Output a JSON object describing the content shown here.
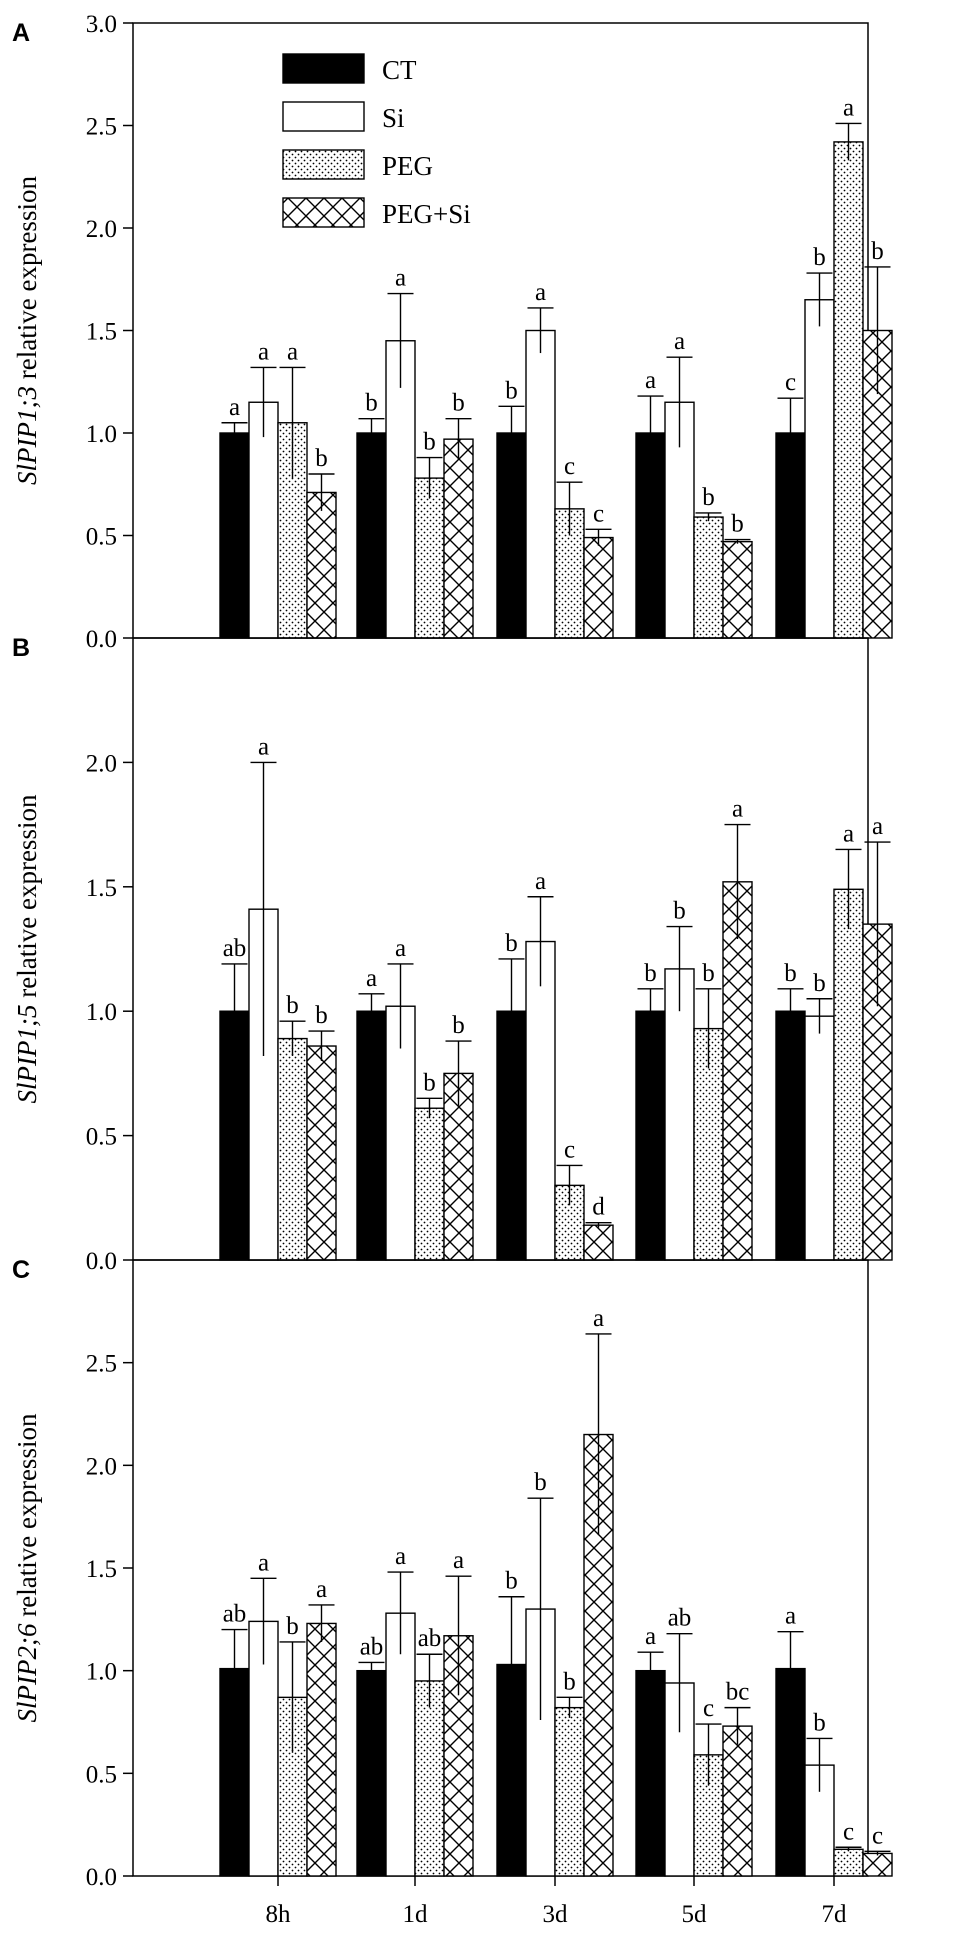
{
  "figure": {
    "legend": [
      {
        "name": "CT",
        "pattern": "solid"
      },
      {
        "name": "Si",
        "pattern": "open"
      },
      {
        "name": "PEG",
        "pattern": "dots"
      },
      {
        "name": "PEG+Si",
        "pattern": "crosshatch"
      }
    ],
    "x_categories": [
      "8h",
      "1d",
      "3d",
      "5d",
      "7d"
    ]
  },
  "chart_data": [
    {
      "type": "bar",
      "panel": "A",
      "title": "",
      "ylabel_italic": "SlPIP1;3",
      "ylabel_rest": " relative expression",
      "xlabel": "",
      "categories": [
        "8h",
        "1d",
        "3d",
        "5d",
        "7d"
      ],
      "ylim": [
        0,
        3.0
      ],
      "yticks": [
        0.0,
        0.5,
        1.0,
        1.5,
        2.0,
        2.5,
        3.0
      ],
      "ytick_labels": [
        "0.0",
        "0.5",
        "1.0",
        "1.5",
        "2.0",
        "2.5",
        "3.0"
      ],
      "series": [
        {
          "name": "CT",
          "values": [
            1.0,
            1.0,
            1.0,
            1.0,
            1.0
          ],
          "errors": [
            0.05,
            0.07,
            0.13,
            0.18,
            0.17
          ],
          "letters": [
            "a",
            "b",
            "b",
            "a",
            "c"
          ]
        },
        {
          "name": "Si",
          "values": [
            1.15,
            1.45,
            1.5,
            1.15,
            1.65
          ],
          "errors": [
            0.17,
            0.23,
            0.11,
            0.22,
            0.13
          ],
          "letters": [
            "a",
            "a",
            "a",
            "a",
            "b"
          ]
        },
        {
          "name": "PEG",
          "values": [
            1.05,
            0.78,
            0.63,
            0.59,
            2.42
          ],
          "errors": [
            0.27,
            0.1,
            0.13,
            0.02,
            0.09
          ],
          "letters": [
            "a",
            "b",
            "c",
            "b",
            "a"
          ]
        },
        {
          "name": "PEG+Si",
          "values": [
            0.71,
            0.97,
            0.49,
            0.47,
            1.5
          ],
          "errors": [
            0.09,
            0.1,
            0.04,
            0.01,
            0.31
          ],
          "letters": [
            "b",
            "b",
            "c",
            "b",
            "b"
          ]
        }
      ]
    },
    {
      "type": "bar",
      "panel": "B",
      "title": "",
      "ylabel_italic": "SlPIP1;5",
      "ylabel_rest": " relative expression",
      "xlabel": "",
      "categories": [
        "8h",
        "1d",
        "3d",
        "5d",
        "7d"
      ],
      "ylim": [
        0,
        2.5
      ],
      "yticks": [
        0.0,
        0.5,
        1.0,
        1.5,
        2.0
      ],
      "ytick_labels": [
        "0.0",
        "0.5",
        "1.0",
        "1.5",
        "2.0"
      ],
      "series": [
        {
          "name": "CT",
          "values": [
            1.0,
            1.0,
            1.0,
            1.0,
            1.0
          ],
          "errors": [
            0.19,
            0.07,
            0.21,
            0.09,
            0.09
          ],
          "letters": [
            "ab",
            "a",
            "b",
            "b",
            "b"
          ]
        },
        {
          "name": "Si",
          "values": [
            1.41,
            1.02,
            1.28,
            1.17,
            0.98
          ],
          "errors": [
            0.59,
            0.17,
            0.18,
            0.17,
            0.07
          ],
          "letters": [
            "a",
            "a",
            "a",
            "b",
            "b"
          ]
        },
        {
          "name": "PEG",
          "values": [
            0.89,
            0.61,
            0.3,
            0.93,
            1.49
          ],
          "errors": [
            0.07,
            0.04,
            0.08,
            0.16,
            0.16
          ],
          "letters": [
            "b",
            "b",
            "c",
            "b",
            "a"
          ]
        },
        {
          "name": "PEG+Si",
          "values": [
            0.86,
            0.75,
            0.14,
            1.52,
            1.35
          ],
          "errors": [
            0.06,
            0.13,
            0.01,
            0.23,
            0.33
          ],
          "letters": [
            "b",
            "b",
            "d",
            "a",
            "a"
          ]
        }
      ]
    },
    {
      "type": "bar",
      "panel": "C",
      "title": "",
      "ylabel_italic": "SlPIP2;6",
      "ylabel_rest": " relative expression",
      "xlabel": "",
      "categories": [
        "8h",
        "1d",
        "3d",
        "5d",
        "7d"
      ],
      "ylim": [
        0,
        3.0
      ],
      "yticks": [
        0.0,
        0.5,
        1.0,
        1.5,
        2.0,
        2.5
      ],
      "ytick_labels": [
        "0.0",
        "0.5",
        "1.0",
        "1.5",
        "2.0",
        "2.5"
      ],
      "series": [
        {
          "name": "CT",
          "values": [
            1.01,
            1.0,
            1.03,
            1.0,
            1.01
          ],
          "errors": [
            0.19,
            0.04,
            0.33,
            0.09,
            0.18
          ],
          "letters": [
            "ab",
            "ab",
            "b",
            "a",
            "a"
          ]
        },
        {
          "name": "Si",
          "values": [
            1.24,
            1.28,
            1.3,
            0.94,
            0.54
          ],
          "errors": [
            0.21,
            0.2,
            0.54,
            0.24,
            0.13
          ],
          "letters": [
            "a",
            "a",
            "b",
            "ab",
            "b"
          ]
        },
        {
          "name": "PEG",
          "values": [
            0.87,
            0.95,
            0.82,
            0.59,
            0.13
          ],
          "errors": [
            0.27,
            0.13,
            0.05,
            0.15,
            0.01
          ],
          "letters": [
            "b",
            "ab",
            "b",
            "c",
            "c"
          ]
        },
        {
          "name": "PEG+Si",
          "values": [
            1.23,
            1.17,
            2.15,
            0.73,
            0.11
          ],
          "errors": [
            0.09,
            0.29,
            0.49,
            0.09,
            0.01
          ],
          "letters": [
            "a",
            "a",
            "a",
            "bc",
            "c"
          ]
        }
      ]
    }
  ]
}
